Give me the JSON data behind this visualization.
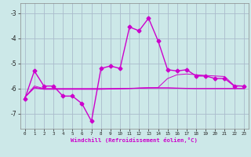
{
  "xlabel": "Windchill (Refroidissement éolien,°C)",
  "bg_color": "#cce8e8",
  "grid_color": "#aabbcc",
  "line_color": "#cc00cc",
  "x_ticks": [
    0,
    1,
    2,
    3,
    4,
    5,
    6,
    7,
    8,
    9,
    10,
    11,
    12,
    13,
    14,
    15,
    16,
    17,
    18,
    19,
    20,
    21,
    22,
    23
  ],
  "ylim": [
    -7.6,
    -2.6
  ],
  "yticks": [
    -7,
    -6,
    -5,
    -4,
    -3
  ],
  "line1_x": [
    0,
    1,
    2,
    3,
    4,
    5,
    6,
    7,
    8,
    9,
    10,
    11,
    12,
    13,
    14,
    15,
    16,
    17,
    18,
    19,
    20,
    21,
    22,
    23
  ],
  "line1_y": [
    -6.4,
    -5.3,
    -5.9,
    -5.9,
    -6.3,
    -6.3,
    -6.6,
    -7.3,
    -5.2,
    -5.1,
    -5.2,
    -3.55,
    -3.7,
    -3.2,
    -4.1,
    -5.25,
    -5.3,
    -5.25,
    -5.5,
    -5.5,
    -5.6,
    -5.6,
    -5.9,
    -5.9
  ],
  "line2_x": [
    0,
    1,
    2,
    3,
    4,
    5,
    6,
    7,
    8,
    9,
    10,
    11,
    12,
    13,
    14,
    15,
    16,
    17,
    18,
    19,
    20,
    21,
    22,
    23
  ],
  "line2_y": [
    -6.35,
    -5.9,
    -6.0,
    -6.0,
    -6.0,
    -6.0,
    -6.0,
    -6.0,
    -6.0,
    -6.0,
    -6.0,
    -6.0,
    -5.98,
    -5.97,
    -5.96,
    -5.6,
    -5.45,
    -5.42,
    -5.45,
    -5.48,
    -5.5,
    -5.52,
    -5.88,
    -5.9
  ],
  "line3_x": [
    0,
    1,
    2,
    3,
    4,
    5,
    6,
    7,
    8,
    9,
    10,
    11,
    12,
    13,
    14,
    15,
    16,
    17,
    18,
    19,
    20,
    21,
    22,
    23
  ],
  "line3_y": [
    -6.35,
    -5.95,
    -6.02,
    -6.02,
    -6.02,
    -6.02,
    -6.02,
    -6.02,
    -6.02,
    -6.01,
    -6.0,
    -5.99,
    -5.98,
    -5.97,
    -5.97,
    -5.97,
    -5.98,
    -5.99,
    -6.0,
    -6.0,
    -6.0,
    -6.0,
    -6.0,
    -6.0
  ],
  "line4_x": [
    0,
    1,
    2,
    3,
    4,
    5,
    6,
    7,
    8,
    9,
    10,
    11,
    12,
    13,
    14,
    15,
    16,
    17,
    18,
    19,
    20,
    21,
    22,
    23
  ],
  "line4_y": [
    -6.35,
    -5.98,
    -6.03,
    -6.03,
    -6.03,
    -6.03,
    -6.03,
    -6.03,
    -6.03,
    -6.02,
    -6.01,
    -6.0,
    -5.99,
    -5.98,
    -5.98,
    -5.98,
    -5.99,
    -6.0,
    -6.0,
    -6.0,
    -6.0,
    -6.0,
    -6.0,
    -6.0
  ]
}
